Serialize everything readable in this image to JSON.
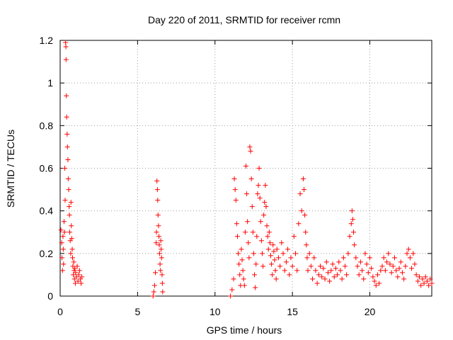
{
  "chart_data": {
    "type": "scatter",
    "title": "Day 220 of 2011, SRMTID for receiver rcmn",
    "xlabel": "GPS time / hours",
    "ylabel": "SRMTID / TECUs",
    "xlim": [
      0,
      24
    ],
    "ylim": [
      0,
      1.2
    ],
    "xticks": [
      0,
      5,
      10,
      15,
      20
    ],
    "xtick_labels": [
      "0",
      "5",
      "10",
      "15",
      "20"
    ],
    "yticks": [
      0,
      0.2,
      0.4,
      0.6,
      0.8,
      1.0,
      1.2
    ],
    "ytick_labels": [
      "0",
      "0.2",
      "0.4",
      "0.6",
      "0.8",
      "1",
      "1.2"
    ],
    "grid": true,
    "marker": "plus",
    "color": "#ff0000",
    "series": [
      {
        "name": "SRMTID",
        "points": [
          [
            0.05,
            0.31
          ],
          [
            0.1,
            0.25
          ],
          [
            0.12,
            0.18
          ],
          [
            0.15,
            0.12
          ],
          [
            0.18,
            0.28
          ],
          [
            0.2,
            0.22
          ],
          [
            0.22,
            0.15
          ],
          [
            0.25,
            0.35
          ],
          [
            0.28,
            0.3
          ],
          [
            0.3,
            0.6
          ],
          [
            0.32,
            0.45
          ],
          [
            0.35,
            1.19
          ],
          [
            0.37,
            1.17
          ],
          [
            0.38,
            1.11
          ],
          [
            0.4,
            0.94
          ],
          [
            0.42,
            0.84
          ],
          [
            0.45,
            0.76
          ],
          [
            0.47,
            0.7
          ],
          [
            0.5,
            0.64
          ],
          [
            0.52,
            0.55
          ],
          [
            0.55,
            0.5
          ],
          [
            0.58,
            0.42
          ],
          [
            0.6,
            0.38
          ],
          [
            0.62,
            0.3
          ],
          [
            0.65,
            0.26
          ],
          [
            0.68,
            0.2
          ],
          [
            0.7,
            0.44
          ],
          [
            0.72,
            0.33
          ],
          [
            0.75,
            0.27
          ],
          [
            0.78,
            0.22
          ],
          [
            0.8,
            0.18
          ],
          [
            0.82,
            0.14
          ],
          [
            0.85,
            0.1
          ],
          [
            0.88,
            0.16
          ],
          [
            0.9,
            0.12
          ],
          [
            0.92,
            0.08
          ],
          [
            0.95,
            0.13
          ],
          [
            0.98,
            0.06
          ],
          [
            1.0,
            0.11
          ],
          [
            1.05,
            0.09
          ],
          [
            1.1,
            0.14
          ],
          [
            1.15,
            0.07
          ],
          [
            1.2,
            0.1
          ],
          [
            1.25,
            0.12
          ],
          [
            1.3,
            0.08
          ],
          [
            1.35,
            0.06
          ],
          [
            1.4,
            0.09
          ],
          [
            6.0,
            0.0
          ],
          [
            6.05,
            0.02
          ],
          [
            6.1,
            0.05
          ],
          [
            6.15,
            0.11
          ],
          [
            6.2,
            0.25
          ],
          [
            6.22,
            0.3
          ],
          [
            6.25,
            0.54
          ],
          [
            6.28,
            0.5
          ],
          [
            6.3,
            0.45
          ],
          [
            6.32,
            0.38
          ],
          [
            6.35,
            0.33
          ],
          [
            6.38,
            0.28
          ],
          [
            6.4,
            0.24
          ],
          [
            6.42,
            0.2
          ],
          [
            6.45,
            0.15
          ],
          [
            6.48,
            0.12
          ],
          [
            6.5,
            0.26
          ],
          [
            6.52,
            0.22
          ],
          [
            6.55,
            0.18
          ],
          [
            6.58,
            0.1
          ],
          [
            6.6,
            0.06
          ],
          [
            6.62,
            0.02
          ],
          [
            11.0,
            0.0
          ],
          [
            11.1,
            0.03
          ],
          [
            11.2,
            0.08
          ],
          [
            11.25,
            0.55
          ],
          [
            11.3,
            0.5
          ],
          [
            11.35,
            0.45
          ],
          [
            11.4,
            0.34
          ],
          [
            11.45,
            0.28
          ],
          [
            11.5,
            0.2
          ],
          [
            11.55,
            0.15
          ],
          [
            11.6,
            0.1
          ],
          [
            11.65,
            0.05
          ],
          [
            11.7,
            0.22
          ],
          [
            11.75,
            0.17
          ],
          [
            11.8,
            0.12
          ],
          [
            11.85,
            0.08
          ],
          [
            11.9,
            0.05
          ],
          [
            11.95,
            0.3
          ],
          [
            12.0,
            0.61
          ],
          [
            12.05,
            0.48
          ],
          [
            12.1,
            0.35
          ],
          [
            12.15,
            0.25
          ],
          [
            12.2,
            0.18
          ],
          [
            12.25,
            0.7
          ],
          [
            12.3,
            0.68
          ],
          [
            12.35,
            0.55
          ],
          [
            12.4,
            0.42
          ],
          [
            12.45,
            0.3
          ],
          [
            12.5,
            0.2
          ],
          [
            12.55,
            0.1
          ],
          [
            12.6,
            0.04
          ],
          [
            12.65,
            0.15
          ],
          [
            12.7,
            0.28
          ],
          [
            12.75,
            0.48
          ],
          [
            12.8,
            0.52
          ],
          [
            12.85,
            0.6
          ],
          [
            12.9,
            0.46
          ],
          [
            12.95,
            0.35
          ],
          [
            13.0,
            0.26
          ],
          [
            13.05,
            0.2
          ],
          [
            13.1,
            0.14
          ],
          [
            13.15,
            0.38
          ],
          [
            13.2,
            0.44
          ],
          [
            13.25,
            0.52
          ],
          [
            13.3,
            0.42
          ],
          [
            13.35,
            0.33
          ],
          [
            13.4,
            0.28
          ],
          [
            13.45,
            0.22
          ],
          [
            13.5,
            0.3
          ],
          [
            13.55,
            0.25
          ],
          [
            13.6,
            0.19
          ],
          [
            13.65,
            0.15
          ],
          [
            13.7,
            0.1
          ],
          [
            13.75,
            0.24
          ],
          [
            13.8,
            0.21
          ],
          [
            13.85,
            0.17
          ],
          [
            13.9,
            0.12
          ],
          [
            13.95,
            0.08
          ],
          [
            14.0,
            0.22
          ],
          [
            14.1,
            0.18
          ],
          [
            14.2,
            0.14
          ],
          [
            14.3,
            0.25
          ],
          [
            14.4,
            0.2
          ],
          [
            14.5,
            0.12
          ],
          [
            14.6,
            0.16
          ],
          [
            14.7,
            0.22
          ],
          [
            14.8,
            0.1
          ],
          [
            14.9,
            0.18
          ],
          [
            15.0,
            0.14
          ],
          [
            15.1,
            0.28
          ],
          [
            15.2,
            0.2
          ],
          [
            15.3,
            0.12
          ],
          [
            15.4,
            0.34
          ],
          [
            15.5,
            0.48
          ],
          [
            15.6,
            0.4
          ],
          [
            15.7,
            0.55
          ],
          [
            15.75,
            0.5
          ],
          [
            15.8,
            0.38
          ],
          [
            15.85,
            0.3
          ],
          [
            15.9,
            0.24
          ],
          [
            15.95,
            0.18
          ],
          [
            16.0,
            0.12
          ],
          [
            16.1,
            0.2
          ],
          [
            16.2,
            0.14
          ],
          [
            16.3,
            0.08
          ],
          [
            16.4,
            0.18
          ],
          [
            16.5,
            0.12
          ],
          [
            16.6,
            0.06
          ],
          [
            16.7,
            0.1
          ],
          [
            16.8,
            0.14
          ],
          [
            16.9,
            0.09
          ],
          [
            17.0,
            0.13
          ],
          [
            17.1,
            0.08
          ],
          [
            17.2,
            0.16
          ],
          [
            17.3,
            0.11
          ],
          [
            17.4,
            0.07
          ],
          [
            17.5,
            0.12
          ],
          [
            17.6,
            0.15
          ],
          [
            17.7,
            0.09
          ],
          [
            17.8,
            0.13
          ],
          [
            17.9,
            0.1
          ],
          [
            18.0,
            0.16
          ],
          [
            18.1,
            0.12
          ],
          [
            18.2,
            0.08
          ],
          [
            18.3,
            0.18
          ],
          [
            18.4,
            0.14
          ],
          [
            18.5,
            0.1
          ],
          [
            18.6,
            0.2
          ],
          [
            18.7,
            0.28
          ],
          [
            18.8,
            0.34
          ],
          [
            18.85,
            0.4
          ],
          [
            18.9,
            0.36
          ],
          [
            18.95,
            0.3
          ],
          [
            19.0,
            0.24
          ],
          [
            19.1,
            0.18
          ],
          [
            19.2,
            0.14
          ],
          [
            19.3,
            0.1
          ],
          [
            19.4,
            0.16
          ],
          [
            19.5,
            0.12
          ],
          [
            19.6,
            0.08
          ],
          [
            19.7,
            0.2
          ],
          [
            19.8,
            0.15
          ],
          [
            19.9,
            0.11
          ],
          [
            20.0,
            0.18
          ],
          [
            20.1,
            0.13
          ],
          [
            20.2,
            0.09
          ],
          [
            20.3,
            0.07
          ],
          [
            20.4,
            0.05
          ],
          [
            20.5,
            0.1
          ],
          [
            20.6,
            0.06
          ],
          [
            20.7,
            0.12
          ],
          [
            20.8,
            0.14
          ],
          [
            20.9,
            0.18
          ],
          [
            21.0,
            0.12
          ],
          [
            21.1,
            0.16
          ],
          [
            21.2,
            0.2
          ],
          [
            21.3,
            0.15
          ],
          [
            21.4,
            0.11
          ],
          [
            21.5,
            0.14
          ],
          [
            21.6,
            0.18
          ],
          [
            21.7,
            0.12
          ],
          [
            21.8,
            0.09
          ],
          [
            21.9,
            0.13
          ],
          [
            22.0,
            0.16
          ],
          [
            22.1,
            0.11
          ],
          [
            22.2,
            0.08
          ],
          [
            22.3,
            0.14
          ],
          [
            22.4,
            0.2
          ],
          [
            22.5,
            0.22
          ],
          [
            22.6,
            0.18
          ],
          [
            22.7,
            0.13
          ],
          [
            22.8,
            0.2
          ],
          [
            22.9,
            0.15
          ],
          [
            23.0,
            0.1
          ],
          [
            23.1,
            0.07
          ],
          [
            23.2,
            0.09
          ],
          [
            23.3,
            0.05
          ],
          [
            23.4,
            0.08
          ],
          [
            23.5,
            0.06
          ],
          [
            23.6,
            0.09
          ],
          [
            23.7,
            0.07
          ],
          [
            23.8,
            0.05
          ],
          [
            23.9,
            0.08
          ],
          [
            24.0,
            0.06
          ]
        ]
      }
    ]
  }
}
